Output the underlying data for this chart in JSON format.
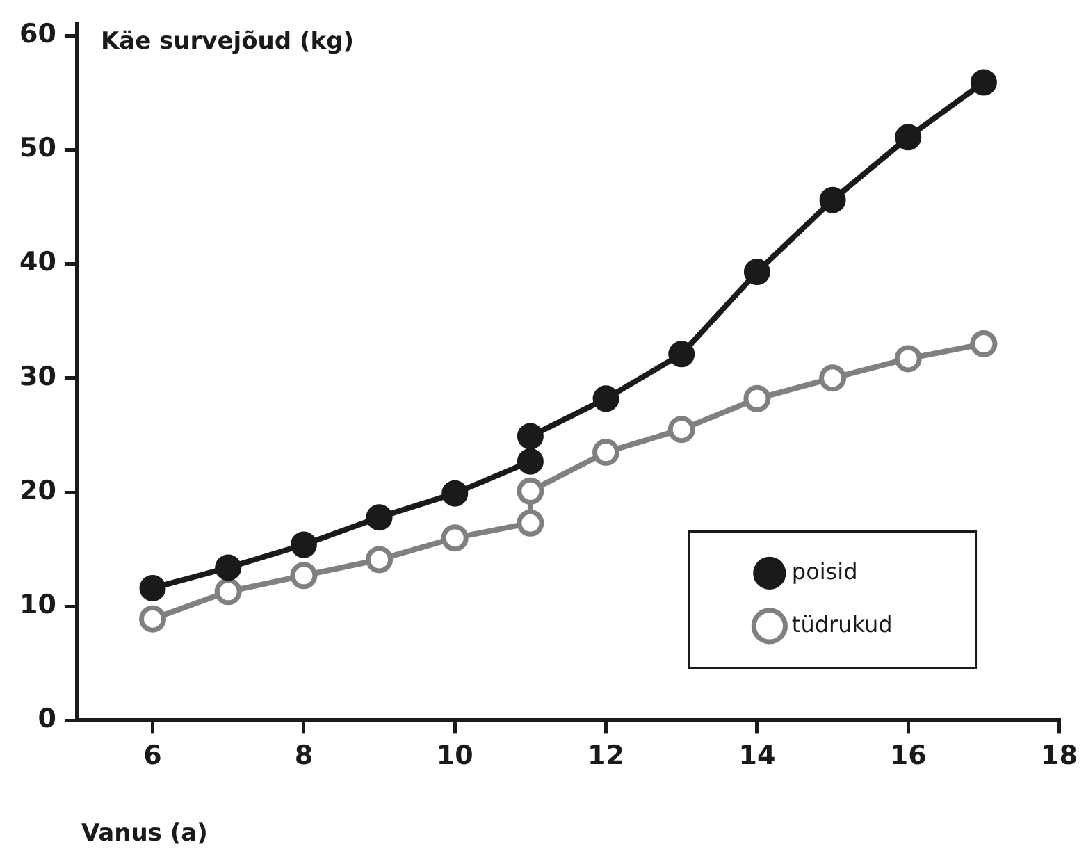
{
  "chart_data": {
    "type": "line",
    "xlabel": "Vanus (a)",
    "ylabel": "Käe survejõud (kg)",
    "xlim": [
      5,
      18
    ],
    "xticks": [
      6,
      8,
      10,
      12,
      14,
      16,
      18
    ],
    "ylim": [
      0,
      61
    ],
    "yticks": [
      0,
      10,
      20,
      30,
      40,
      50,
      60
    ],
    "grid": false,
    "legend": "bottom right",
    "marker": "circle",
    "line_style": "solid",
    "series": [
      {
        "name": "poisid",
        "color": "#1a1a1a",
        "x": [
          6,
          7,
          8,
          9,
          10,
          11,
          11,
          12,
          13,
          14,
          15,
          16,
          17
        ],
        "values": [
          11.6,
          13.4,
          15.4,
          17.8,
          19.9,
          22.7,
          24.9,
          28.2,
          32.1,
          39.3,
          45.6,
          51.1,
          55.9
        ]
      },
      {
        "name": "tüdrukud",
        "color": "#808080",
        "x": [
          6,
          7,
          8,
          9,
          10,
          11,
          11,
          12,
          13,
          14,
          15,
          16,
          17
        ],
        "values": [
          8.9,
          11.3,
          12.7,
          14.1,
          16,
          17.3,
          20.1,
          23.5,
          25.5,
          28.2,
          30,
          31.7,
          33
        ]
      }
    ]
  }
}
